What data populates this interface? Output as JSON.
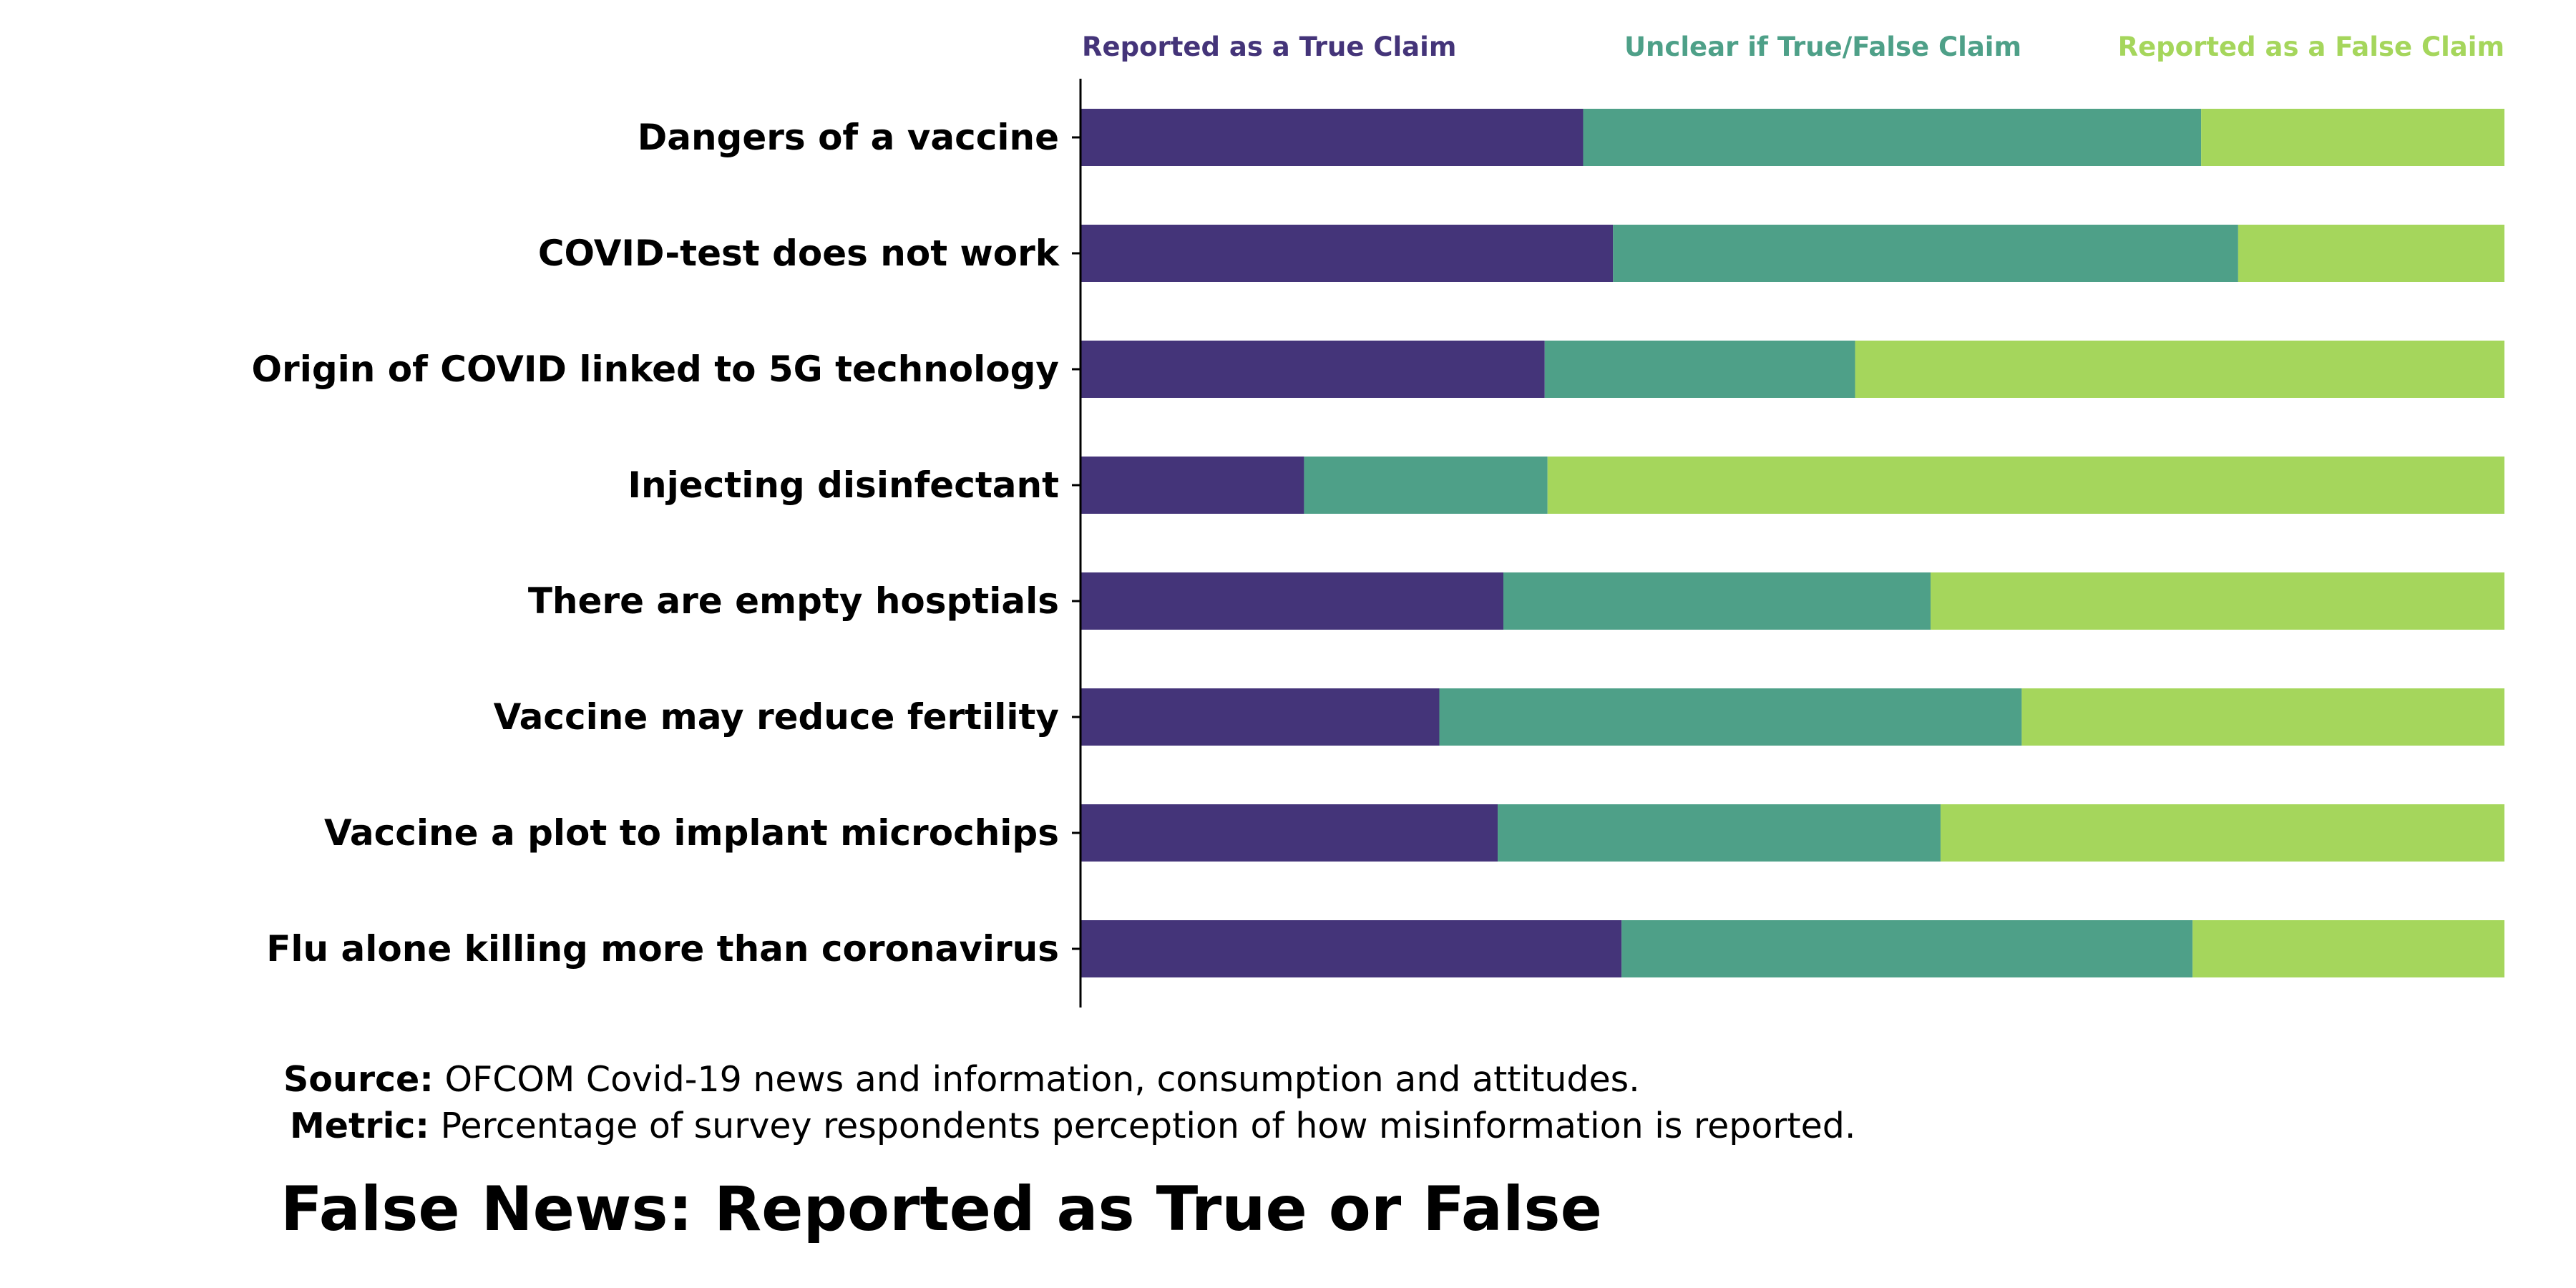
{
  "chart_data": {
    "type": "bar",
    "orientation": "horizontal",
    "stacked": true,
    "normalized": true,
    "title": "False News: Reported as True or False",
    "source_label": "Source:",
    "source_text": "OFCOM Covid-19 news and information, consumption and attitudes.",
    "metric_label": "Metric:",
    "metric_text": "Percentage of survey respondents perception of how misinformation is reported.",
    "legend_position": "top",
    "grid": false,
    "xlim": [
      0,
      100
    ],
    "categories": [
      "Dangers of a vaccine",
      "COVID-test does not work",
      "Origin of COVID linked to 5G technology",
      "Injecting disinfectant",
      "There are empty hosptials",
      "Vaccine may reduce fertility",
      "Vaccine a plot to implant microchips",
      "Flu alone killing more than coronavirus"
    ],
    "series": [
      {
        "name": "Reported as a True Claim",
        "color": "#443479",
        "values": [
          35.3,
          37.4,
          32.6,
          15.7,
          29.7,
          25.2,
          29.3,
          38.0
        ]
      },
      {
        "name": "Unclear if True/False Claim",
        "color": "#4ea088",
        "values": [
          43.4,
          43.9,
          21.8,
          17.1,
          30.0,
          40.9,
          31.1,
          40.1
        ]
      },
      {
        "name": "Reported as a False Claim",
        "color": "#a5d65c",
        "values": [
          21.3,
          18.7,
          45.6,
          67.2,
          40.3,
          33.9,
          39.6,
          21.9
        ]
      }
    ]
  }
}
